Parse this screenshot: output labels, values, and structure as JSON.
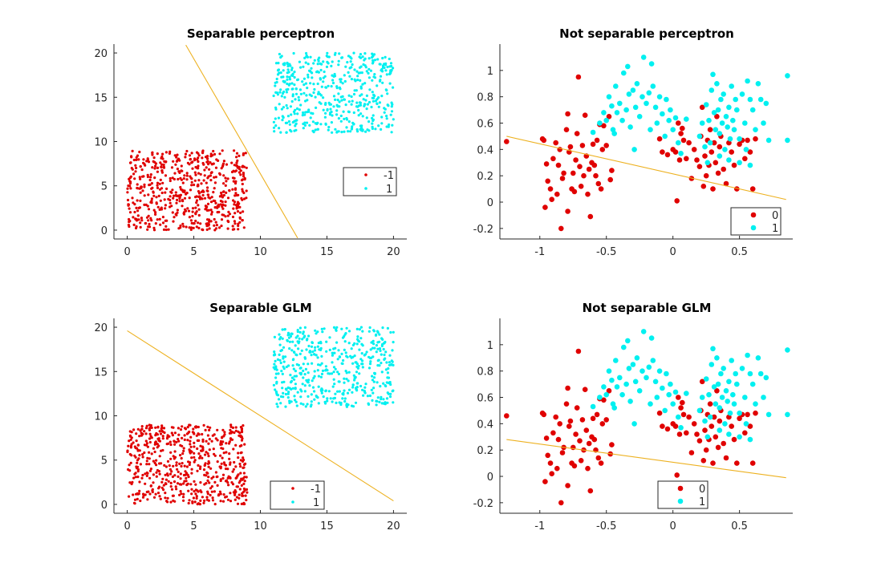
{
  "colors": {
    "red": "#e00000",
    "cyan": "#00f0f0",
    "line": "#edb120",
    "axis": "#262626"
  },
  "chart_data": [
    {
      "type": "scatter",
      "title": "Separable perceptron",
      "xlim": [
        -1,
        21
      ],
      "ylim": [
        -1,
        21
      ],
      "xticks": [
        0,
        5,
        10,
        15,
        20
      ],
      "yticks": [
        0,
        5,
        10,
        15,
        20
      ],
      "grid": false,
      "legend_position": "right-middle",
      "series": [
        {
          "name": "-1",
          "color": "#e00000",
          "marker": "small-dot",
          "cluster": {
            "x": [
              0,
              9
            ],
            "y": [
              0,
              9
            ],
            "count": 600
          }
        },
        {
          "name": "1",
          "color": "#00f0f0",
          "marker": "small-dot",
          "cluster": {
            "x": [
              11,
              20
            ],
            "y": [
              11,
              20
            ],
            "count": 500
          }
        }
      ],
      "decision_boundary": {
        "points": [
          [
            4.4,
            20.9
          ],
          [
            12.8,
            -0.9
          ]
        ],
        "color": "#edb120"
      }
    },
    {
      "type": "scatter",
      "title": "Not separable perceptron",
      "xlim": [
        -1.3,
        0.9
      ],
      "ylim": [
        -0.28,
        1.2
      ],
      "xticks": [
        -1,
        -0.5,
        0,
        0.5
      ],
      "yticks": [
        -0.2,
        0,
        0.2,
        0.4,
        0.6,
        0.8,
        1
      ],
      "grid": false,
      "legend_position": "bottom-right",
      "series": [
        {
          "name": "0",
          "color": "#e00000",
          "marker": "dot"
        },
        {
          "name": "1",
          "color": "#00f0f0",
          "marker": "dot"
        }
      ],
      "decision_boundary": {
        "points": [
          [
            -1.25,
            0.5
          ],
          [
            0.85,
            0.02
          ]
        ],
        "color": "#edb120"
      }
    },
    {
      "type": "scatter",
      "title": "Separable GLM",
      "xlim": [
        -1,
        21
      ],
      "ylim": [
        -1,
        21
      ],
      "xticks": [
        0,
        5,
        10,
        15,
        20
      ],
      "yticks": [
        0,
        5,
        10,
        15,
        20
      ],
      "grid": false,
      "legend_position": "bottom-middle",
      "series": [
        {
          "name": "-1",
          "color": "#e00000",
          "marker": "small-dot",
          "cluster": {
            "x": [
              0,
              9
            ],
            "y": [
              0,
              9
            ],
            "count": 600
          }
        },
        {
          "name": "1",
          "color": "#00f0f0",
          "marker": "small-dot",
          "cluster": {
            "x": [
              11,
              20
            ],
            "y": [
              11,
              20
            ],
            "count": 500
          }
        }
      ],
      "decision_boundary": {
        "points": [
          [
            0,
            19.6
          ],
          [
            20,
            0.4
          ]
        ],
        "color": "#edb120"
      }
    },
    {
      "type": "scatter",
      "title": "Not separable GLM",
      "xlim": [
        -1.3,
        0.9
      ],
      "ylim": [
        -0.28,
        1.2
      ],
      "xticks": [
        -1,
        -0.5,
        0,
        0.5
      ],
      "yticks": [
        -0.2,
        0,
        0.2,
        0.4,
        0.6,
        0.8,
        1
      ],
      "grid": false,
      "legend_position": "bottom-middle",
      "series": [
        {
          "name": "0",
          "color": "#e00000",
          "marker": "dot"
        },
        {
          "name": "1",
          "color": "#00f0f0",
          "marker": "dot"
        }
      ],
      "decision_boundary": {
        "points": [
          [
            -1.25,
            0.28
          ],
          [
            0.85,
            -0.01
          ]
        ],
        "color": "#edb120"
      }
    }
  ],
  "moons_data": {
    "class0": [
      [
        -1.25,
        0.46
      ],
      [
        -0.98,
        0.48
      ],
      [
        -0.97,
        0.47
      ],
      [
        -0.95,
        0.29
      ],
      [
        -0.92,
        0.1
      ],
      [
        -0.9,
        0.33
      ],
      [
        -0.88,
        0.45
      ],
      [
        -0.86,
        0.28
      ],
      [
        -0.85,
        0.4
      ],
      [
        -0.83,
        0.18
      ],
      [
        -0.82,
        0.22
      ],
      [
        -0.8,
        0.55
      ],
      [
        -0.79,
        0.67
      ],
      [
        -0.78,
        0.38
      ],
      [
        -0.77,
        0.42
      ],
      [
        -0.76,
        0.1
      ],
      [
        -0.75,
        0.22
      ],
      [
        -0.73,
        0.32
      ],
      [
        -0.72,
        0.52
      ],
      [
        -0.71,
        0.95
      ],
      [
        -0.7,
        0.27
      ],
      [
        -0.69,
        0.12
      ],
      [
        -0.68,
        0.43
      ],
      [
        -0.67,
        0.2
      ],
      [
        -0.66,
        0.66
      ],
      [
        -0.65,
        0.35
      ],
      [
        -0.64,
        0.06
      ],
      [
        -0.63,
        0.25
      ],
      [
        -0.62,
        -0.11
      ],
      [
        -0.61,
        0.3
      ],
      [
        -0.6,
        0.44
      ],
      [
        -0.59,
        0.28
      ],
      [
        -0.58,
        0.2
      ],
      [
        -0.57,
        0.47
      ],
      [
        -0.56,
        0.14
      ],
      [
        -0.55,
        0.59
      ],
      [
        -0.54,
        0.1
      ],
      [
        -0.53,
        0.4
      ],
      [
        -0.52,
        0.58
      ],
      [
        -0.5,
        0.43
      ],
      [
        -0.48,
        0.65
      ],
      [
        -0.47,
        0.17
      ],
      [
        -0.46,
        0.24
      ],
      [
        -0.94,
        0.16
      ],
      [
        -0.87,
        0.06
      ],
      [
        -0.84,
        -0.2
      ],
      [
        -0.79,
        -0.07
      ],
      [
        -0.74,
        0.08
      ],
      [
        -0.96,
        -0.04
      ],
      [
        -0.91,
        0.02
      ],
      [
        0.0,
        0.4
      ],
      [
        0.02,
        0.38
      ],
      [
        0.04,
        0.6
      ],
      [
        0.05,
        0.32
      ],
      [
        0.07,
        0.56
      ],
      [
        0.08,
        0.47
      ],
      [
        0.1,
        0.33
      ],
      [
        0.12,
        0.45
      ],
      [
        0.14,
        0.18
      ],
      [
        0.16,
        0.4
      ],
      [
        0.18,
        0.32
      ],
      [
        0.2,
        0.27
      ],
      [
        0.21,
        0.5
      ],
      [
        0.22,
        0.72
      ],
      [
        0.23,
        0.12
      ],
      [
        0.24,
        0.35
      ],
      [
        0.25,
        0.2
      ],
      [
        0.26,
        0.47
      ],
      [
        0.27,
        0.28
      ],
      [
        0.28,
        0.55
      ],
      [
        0.29,
        0.38
      ],
      [
        0.3,
        0.1
      ],
      [
        0.31,
        0.45
      ],
      [
        0.32,
        0.3
      ],
      [
        0.33,
        0.65
      ],
      [
        0.34,
        0.22
      ],
      [
        0.35,
        0.42
      ],
      [
        0.36,
        0.5
      ],
      [
        0.38,
        0.25
      ],
      [
        0.4,
        0.14
      ],
      [
        0.42,
        0.45
      ],
      [
        0.44,
        0.38
      ],
      [
        0.46,
        0.28
      ],
      [
        0.48,
        0.1
      ],
      [
        0.5,
        0.44
      ],
      [
        0.52,
        0.47
      ],
      [
        0.54,
        0.33
      ],
      [
        0.56,
        0.47
      ],
      [
        0.58,
        0.38
      ],
      [
        0.6,
        0.1
      ],
      [
        0.62,
        0.48
      ],
      [
        -0.1,
        0.48
      ],
      [
        -0.08,
        0.38
      ],
      [
        0.03,
        0.01
      ],
      [
        0.06,
        0.52
      ],
      [
        -0.04,
        0.36
      ]
    ],
    "class1": [
      [
        -0.6,
        0.53
      ],
      [
        -0.55,
        0.6
      ],
      [
        -0.52,
        0.68
      ],
      [
        -0.5,
        0.62
      ],
      [
        -0.48,
        0.8
      ],
      [
        -0.46,
        0.73
      ],
      [
        -0.45,
        0.55
      ],
      [
        -0.43,
        0.88
      ],
      [
        -0.42,
        0.68
      ],
      [
        -0.4,
        0.75
      ],
      [
        -0.38,
        0.62
      ],
      [
        -0.37,
        0.98
      ],
      [
        -0.35,
        0.7
      ],
      [
        -0.33,
        0.82
      ],
      [
        -0.32,
        0.57
      ],
      [
        -0.3,
        0.85
      ],
      [
        -0.28,
        0.72
      ],
      [
        -0.27,
        0.9
      ],
      [
        -0.25,
        0.65
      ],
      [
        -0.23,
        0.8
      ],
      [
        -0.22,
        1.1
      ],
      [
        -0.2,
        0.75
      ],
      [
        -0.18,
        0.83
      ],
      [
        -0.17,
        0.55
      ],
      [
        -0.15,
        0.88
      ],
      [
        -0.13,
        0.72
      ],
      [
        -0.12,
        0.6
      ],
      [
        -0.1,
        0.8
      ],
      [
        -0.08,
        0.67
      ],
      [
        -0.06,
        0.5
      ],
      [
        -0.05,
        0.78
      ],
      [
        -0.03,
        0.62
      ],
      [
        -0.02,
        0.7
      ],
      [
        0.0,
        0.55
      ],
      [
        0.02,
        0.64
      ],
      [
        0.04,
        0.45
      ],
      [
        -0.44,
        0.52
      ],
      [
        -0.29,
        0.4
      ],
      [
        -0.16,
        1.05
      ],
      [
        -0.34,
        1.03
      ],
      [
        0.06,
        0.37
      ],
      [
        0.1,
        0.63
      ],
      [
        0.2,
        0.5
      ],
      [
        0.22,
        0.6
      ],
      [
        0.24,
        0.42
      ],
      [
        0.25,
        0.74
      ],
      [
        0.27,
        0.62
      ],
      [
        0.28,
        0.45
      ],
      [
        0.29,
        0.85
      ],
      [
        0.3,
        0.97
      ],
      [
        0.31,
        0.68
      ],
      [
        0.32,
        0.55
      ],
      [
        0.33,
        0.9
      ],
      [
        0.34,
        0.7
      ],
      [
        0.35,
        0.52
      ],
      [
        0.36,
        0.78
      ],
      [
        0.37,
        0.6
      ],
      [
        0.38,
        0.82
      ],
      [
        0.39,
        0.4
      ],
      [
        0.4,
        0.65
      ],
      [
        0.41,
        0.57
      ],
      [
        0.42,
        0.72
      ],
      [
        0.43,
        0.48
      ],
      [
        0.44,
        0.88
      ],
      [
        0.45,
        0.62
      ],
      [
        0.46,
        0.55
      ],
      [
        0.47,
        0.78
      ],
      [
        0.48,
        0.7
      ],
      [
        0.5,
        0.48
      ],
      [
        0.52,
        0.82
      ],
      [
        0.54,
        0.6
      ],
      [
        0.55,
        0.4
      ],
      [
        0.56,
        0.92
      ],
      [
        0.58,
        0.78
      ],
      [
        0.6,
        0.7
      ],
      [
        0.62,
        0.55
      ],
      [
        0.64,
        0.9
      ],
      [
        0.66,
        0.78
      ],
      [
        0.68,
        0.6
      ],
      [
        0.7,
        0.75
      ],
      [
        0.72,
        0.47
      ],
      [
        0.86,
        0.96
      ],
      [
        0.86,
        0.47
      ],
      [
        0.26,
        0.3
      ],
      [
        0.35,
        0.35
      ],
      [
        0.42,
        0.32
      ],
      [
        0.5,
        0.3
      ],
      [
        0.58,
        0.28
      ]
    ]
  },
  "legend_sep": [
    {
      "label": "-1"
    },
    {
      "label": "1"
    }
  ],
  "legend_moon": [
    {
      "label": "0"
    },
    {
      "label": "1"
    }
  ]
}
